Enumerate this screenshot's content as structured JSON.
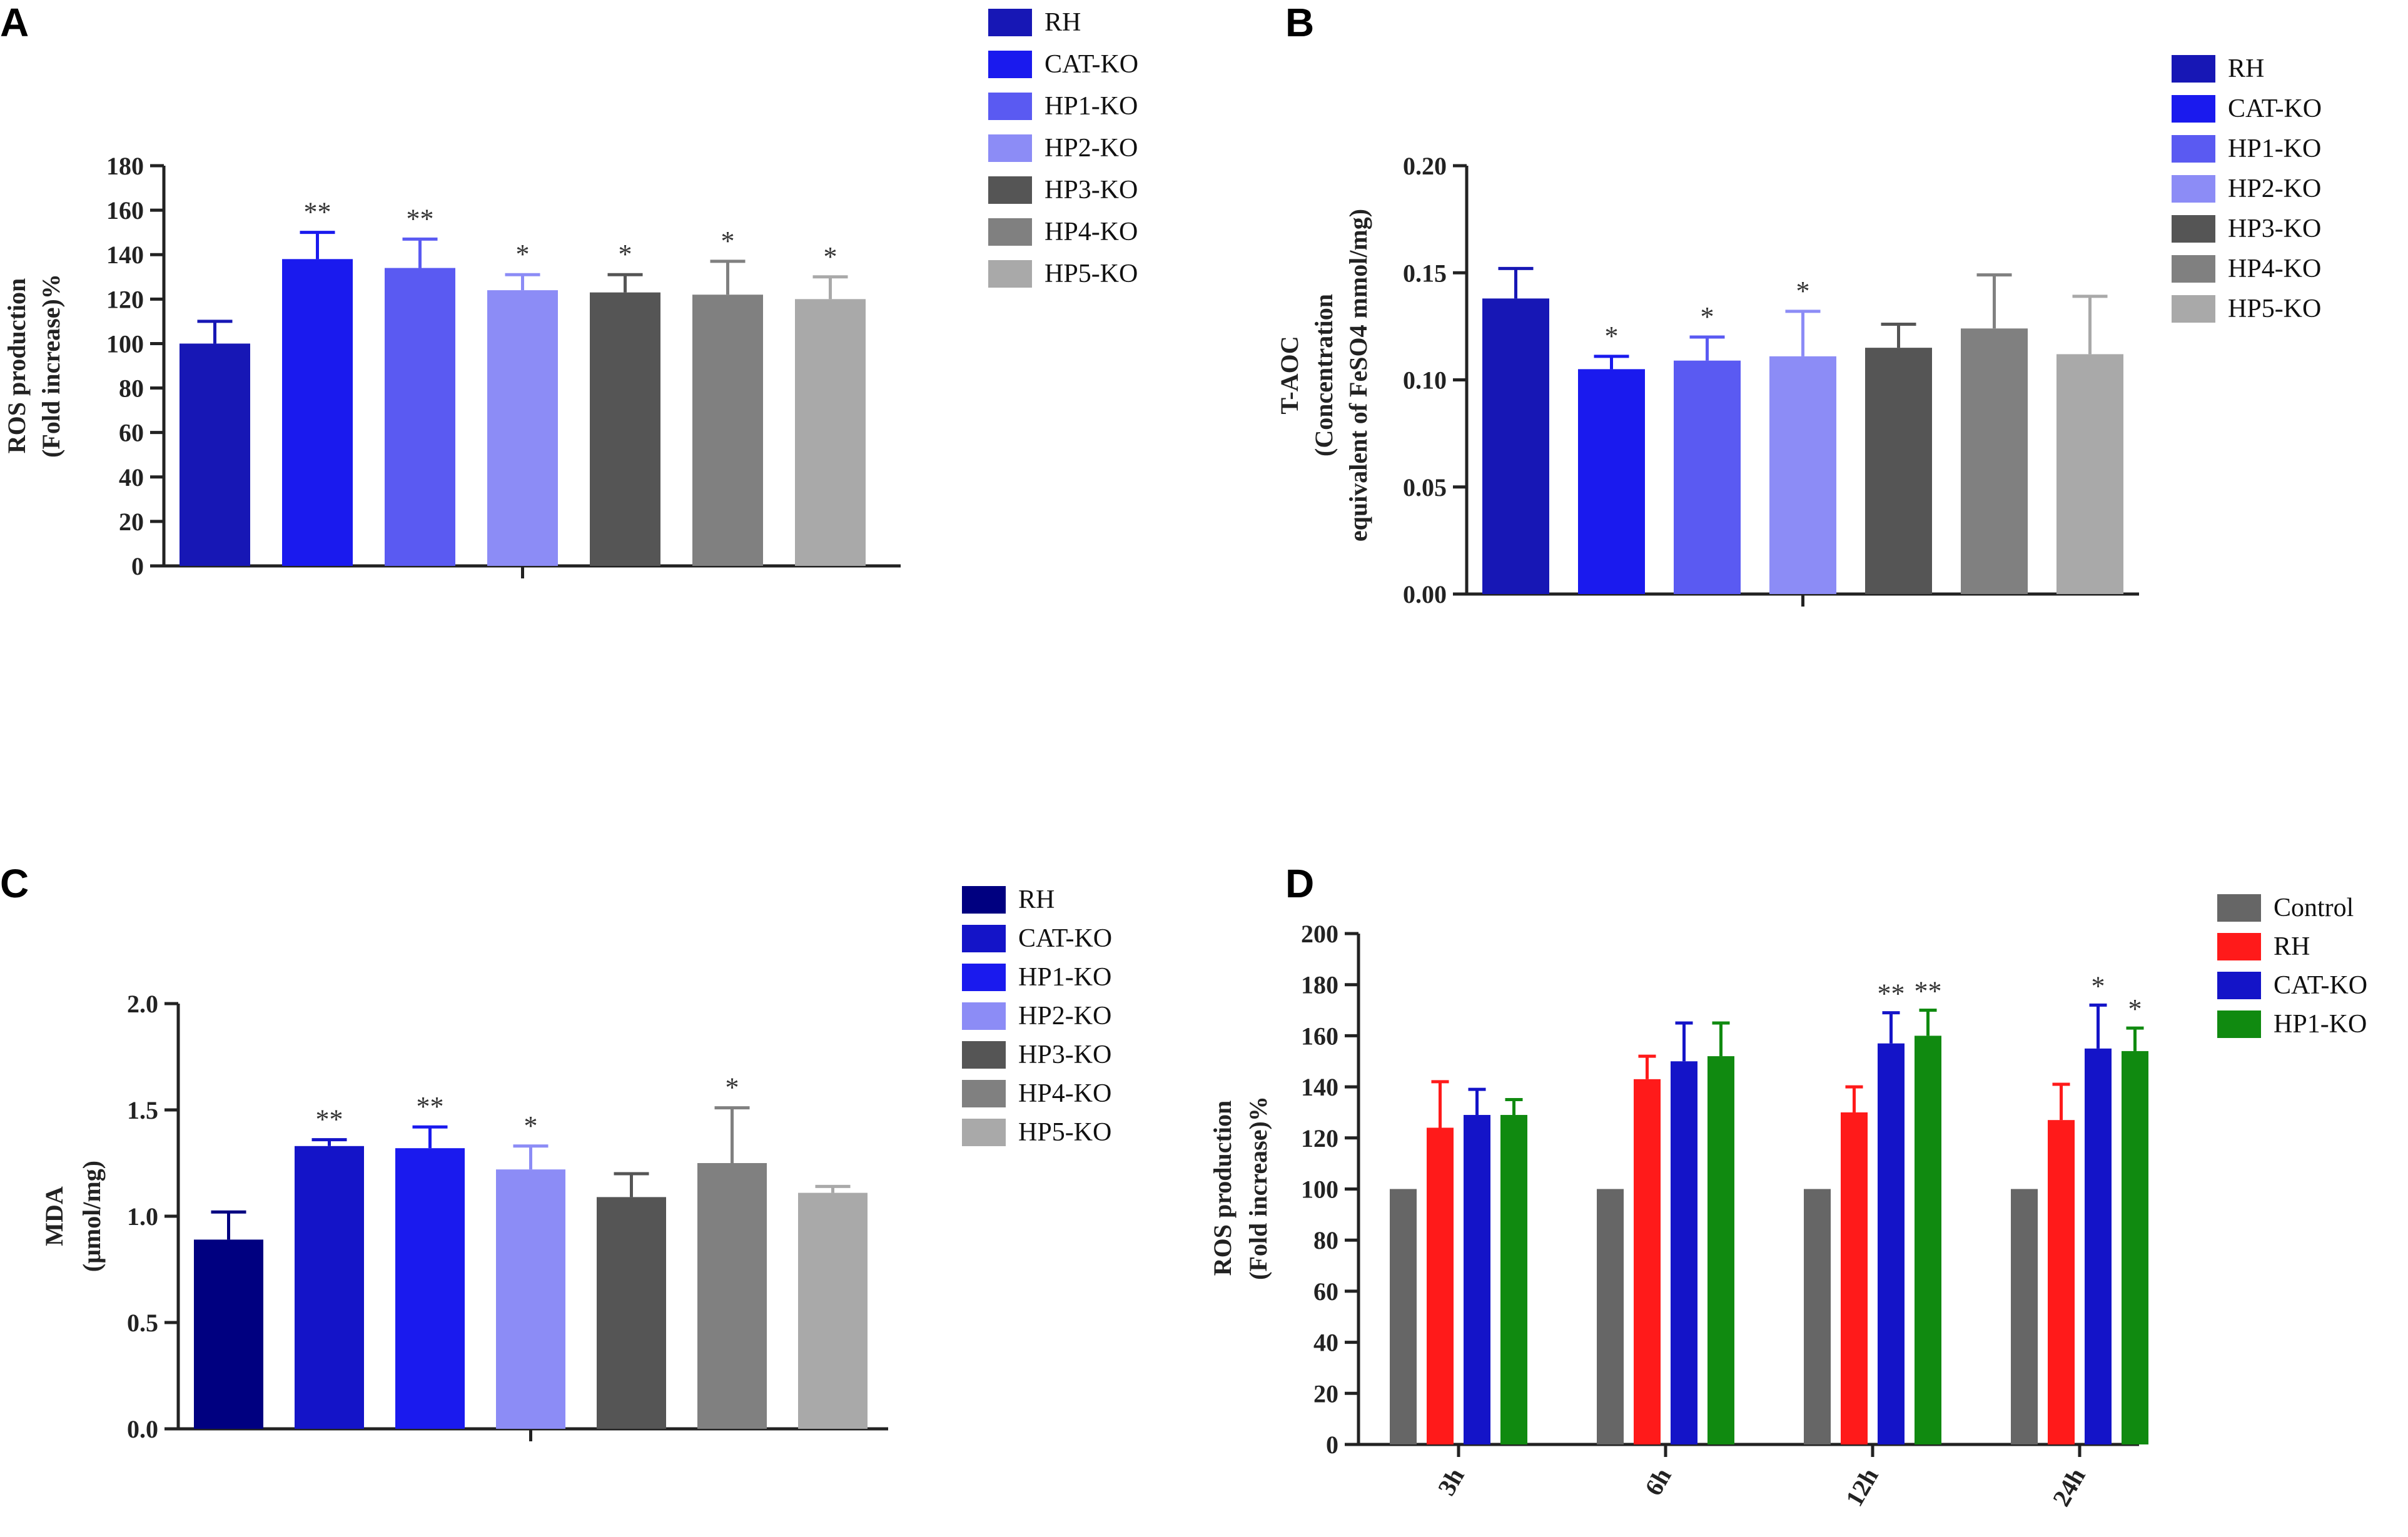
{
  "chart_data": [
    {
      "panel": "A",
      "type": "bar",
      "title": "",
      "xlabel": "",
      "ylabel_lines": [
        "ROS production",
        "(Fold increase)%"
      ],
      "ylim": [
        0,
        180
      ],
      "yticks": [
        0,
        20,
        40,
        60,
        80,
        100,
        120,
        140,
        160,
        180
      ],
      "ytick_labels": [
        "0",
        "20",
        "40",
        "60",
        "80",
        "100",
        "120",
        "140",
        "160",
        "180"
      ],
      "legend_position": "top-right",
      "series": [
        {
          "name": "RH",
          "value": 100,
          "error": 10,
          "sig": "",
          "color": "#1717b5"
        },
        {
          "name": "CAT-KO",
          "value": 138,
          "error": 12,
          "sig": "**",
          "color": "#1a1aee"
        },
        {
          "name": "HP1-KO",
          "value": 134,
          "error": 13,
          "sig": "**",
          "color": "#5a5af2"
        },
        {
          "name": "HP2-KO",
          "value": 124,
          "error": 7,
          "sig": "*",
          "color": "#8c8cf6"
        },
        {
          "name": "HP3-KO",
          "value": 123,
          "error": 8,
          "sig": "*",
          "color": "#555555"
        },
        {
          "name": "HP4-KO",
          "value": 122,
          "error": 15,
          "sig": "*",
          "color": "#808080"
        },
        {
          "name": "HP5-KO",
          "value": 120,
          "error": 10,
          "sig": "*",
          "color": "#a9a9a9"
        }
      ]
    },
    {
      "panel": "B",
      "type": "bar",
      "title": "",
      "xlabel": "",
      "ylabel_lines": [
        "T-AOC",
        "(Concentration",
        "equivalent of FeSO4 mmol/mg)"
      ],
      "ylim": [
        0,
        0.2
      ],
      "yticks": [
        0,
        0.05,
        0.1,
        0.15,
        0.2
      ],
      "ytick_labels": [
        "0.00",
        "0.05",
        "0.10",
        "0.15",
        "0.20"
      ],
      "legend_position": "top-right",
      "series": [
        {
          "name": "RH",
          "value": 0.138,
          "error": 0.014,
          "sig": "",
          "color": "#1717b5"
        },
        {
          "name": "CAT-KO",
          "value": 0.105,
          "error": 0.006,
          "sig": "*",
          "color": "#1a1aee"
        },
        {
          "name": "HP1-KO",
          "value": 0.109,
          "error": 0.011,
          "sig": "*",
          "color": "#5a5af2"
        },
        {
          "name": "HP2-KO",
          "value": 0.111,
          "error": 0.021,
          "sig": "*",
          "color": "#8c8cf6"
        },
        {
          "name": "HP3-KO",
          "value": 0.115,
          "error": 0.011,
          "sig": "",
          "color": "#555555"
        },
        {
          "name": "HP4-KO",
          "value": 0.124,
          "error": 0.025,
          "sig": "",
          "color": "#808080"
        },
        {
          "name": "HP5-KO",
          "value": 0.112,
          "error": 0.027,
          "sig": "",
          "color": "#a9a9a9"
        }
      ]
    },
    {
      "panel": "C",
      "type": "bar",
      "title": "",
      "xlabel": "",
      "ylabel_lines": [
        "MDA",
        "(μmol/mg)"
      ],
      "ylim": [
        0,
        2.0
      ],
      "yticks": [
        0,
        0.5,
        1.0,
        1.5,
        2.0
      ],
      "ytick_labels": [
        "0.0",
        "0.5",
        "1.0",
        "1.5",
        "2.0"
      ],
      "legend_position": "top-right",
      "series": [
        {
          "name": "RH",
          "value": 0.89,
          "error": 0.13,
          "sig": "",
          "color": "#000080"
        },
        {
          "name": "CAT-KO",
          "value": 1.33,
          "error": 0.03,
          "sig": "**",
          "color": "#1414c8"
        },
        {
          "name": "HP1-KO",
          "value": 1.32,
          "error": 0.1,
          "sig": "**",
          "color": "#1a1aee"
        },
        {
          "name": "HP2-KO",
          "value": 1.22,
          "error": 0.11,
          "sig": "*",
          "color": "#8c8cf6"
        },
        {
          "name": "HP3-KO",
          "value": 1.09,
          "error": 0.11,
          "sig": "",
          "color": "#555555"
        },
        {
          "name": "HP4-KO",
          "value": 1.25,
          "error": 0.26,
          "sig": "*",
          "color": "#808080"
        },
        {
          "name": "HP5-KO",
          "value": 1.11,
          "error": 0.03,
          "sig": "",
          "color": "#a9a9a9"
        }
      ]
    },
    {
      "panel": "D",
      "type": "bar",
      "title": "",
      "xlabel": "",
      "ylabel_lines": [
        "ROS production",
        "(Fold increase)%"
      ],
      "ylim": [
        0,
        200
      ],
      "yticks": [
        0,
        20,
        40,
        60,
        80,
        100,
        120,
        140,
        160,
        180,
        200
      ],
      "ytick_labels": [
        "0",
        "20",
        "40",
        "60",
        "80",
        "100",
        "120",
        "140",
        "160",
        "180",
        "200"
      ],
      "legend_position": "top-right",
      "categories": [
        "3h",
        "6h",
        "12h",
        "24h"
      ],
      "series": [
        {
          "name": "Control",
          "color": "#666666",
          "values": [
            100,
            100,
            100,
            100
          ],
          "errors": [
            0,
            0,
            0,
            0
          ],
          "sig": [
            "",
            "",
            "",
            ""
          ]
        },
        {
          "name": "RH",
          "color": "#ff1a1a",
          "values": [
            124,
            143,
            130,
            127
          ],
          "errors": [
            18,
            9,
            10,
            14
          ],
          "sig": [
            "",
            "",
            "",
            ""
          ]
        },
        {
          "name": "CAT-KO",
          "color": "#1414c8",
          "values": [
            129,
            150,
            157,
            155
          ],
          "errors": [
            10,
            15,
            12,
            17
          ],
          "sig": [
            "",
            "",
            "**",
            "*"
          ]
        },
        {
          "name": "HP1-KO",
          "color": "#108a10",
          "values": [
            129,
            152,
            160,
            154
          ],
          "errors": [
            6,
            13,
            10,
            9
          ],
          "sig": [
            "",
            "",
            "**",
            "*"
          ]
        }
      ]
    }
  ],
  "panel_labels": [
    "A",
    "B",
    "C",
    "D"
  ]
}
